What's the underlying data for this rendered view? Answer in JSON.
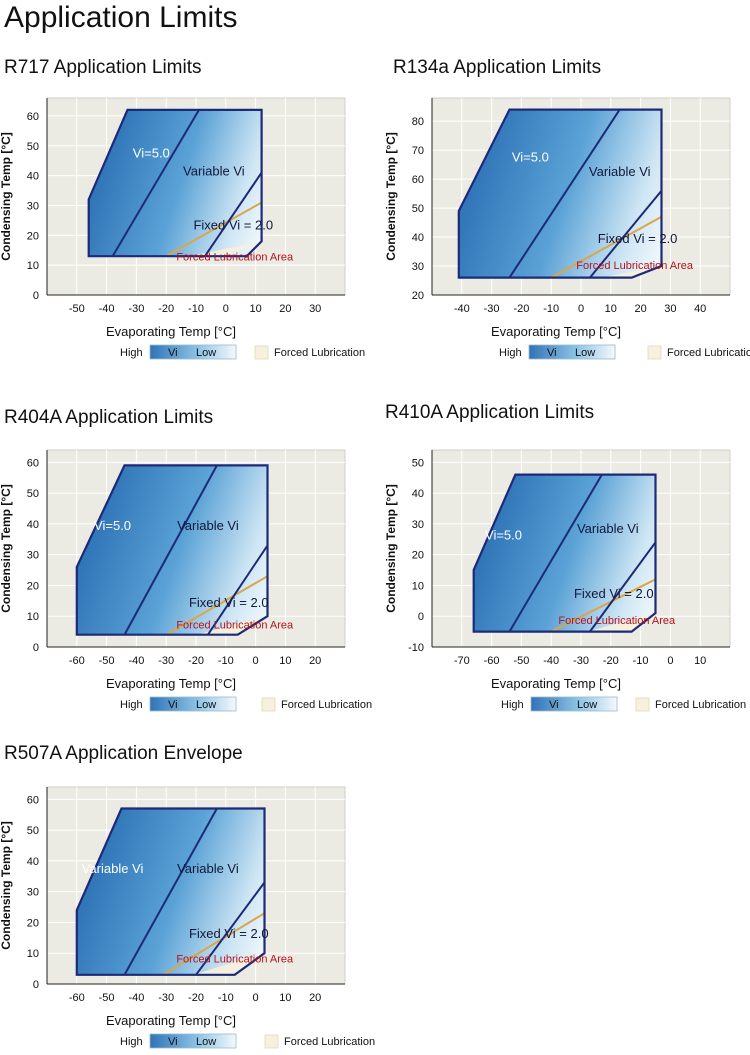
{
  "page": {
    "title": "Application Limits"
  },
  "chart_data": [
    {
      "type": "area",
      "title": "R717 Application Limits",
      "xlabel": "Evaporating Temp [°C]",
      "ylabel": "Condensing Temp [°C]",
      "xlim": [
        -60,
        40
      ],
      "ylim": [
        0,
        66
      ],
      "xticks": [
        -50,
        -40,
        -30,
        -20,
        -10,
        0,
        10,
        20,
        30
      ],
      "yticks": [
        0,
        10,
        20,
        30,
        40,
        50,
        60
      ],
      "envelope": [
        [
          -46,
          13
        ],
        [
          -46,
          32
        ],
        [
          -33,
          62
        ],
        [
          12,
          62
        ],
        [
          12,
          18
        ],
        [
          7,
          13
        ]
      ],
      "lines": [
        {
          "name": "vi-boundary-high",
          "points": [
            [
              -38,
              13
            ],
            [
              -9,
              62
            ]
          ]
        },
        {
          "name": "vi-boundary-fixed",
          "points": [
            [
              -7,
              13
            ],
            [
              12,
              41
            ]
          ]
        }
      ],
      "lubrication_line": [
        [
          -20,
          13
        ],
        [
          12,
          31
        ]
      ],
      "forced_lubrication_area": [
        [
          -12,
          13
        ],
        [
          0,
          13
        ],
        [
          12,
          18
        ]
      ],
      "region_labels": [
        {
          "text": "Vi=5.0",
          "x": -25,
          "y": 46,
          "color": "#ffffff"
        },
        {
          "text": "Variable Vi",
          "x": -4,
          "y": 40,
          "color": "#10183a"
        },
        {
          "text": "Fixed Vi = 2.0",
          "x": 2.5,
          "y": 22,
          "color": "#10183a"
        },
        {
          "text": "Forced Lubrication Area",
          "x": 3,
          "y": 11.5,
          "color": "#b5121b",
          "size": 11
        }
      ],
      "grid": true,
      "legend": {
        "high": "High",
        "vi": "Vi",
        "low": "Low",
        "forced": "Forced Lubrication"
      }
    },
    {
      "type": "area",
      "title": "R134a Application Limits",
      "xlabel": "Evaporating Temp [°C]",
      "ylabel": "Condensing Temp [°C]",
      "xlim": [
        -50,
        50
      ],
      "ylim": [
        20,
        88
      ],
      "xticks": [
        -40,
        -30,
        -20,
        -10,
        0,
        10,
        20,
        30,
        40
      ],
      "yticks": [
        20,
        30,
        40,
        50,
        60,
        70,
        80
      ],
      "envelope": [
        [
          -41,
          26
        ],
        [
          -41,
          49
        ],
        [
          -24,
          84
        ],
        [
          27,
          84
        ],
        [
          27,
          30
        ],
        [
          17,
          26
        ]
      ],
      "lines": [
        {
          "name": "vi-boundary-high",
          "points": [
            [
              -24,
              26
            ],
            [
              13,
              84
            ]
          ]
        },
        {
          "name": "vi-boundary-fixed",
          "points": [
            [
              3,
              26
            ],
            [
              27,
              56
            ]
          ]
        }
      ],
      "lubrication_line": [
        [
          -10,
          26
        ],
        [
          27,
          47
        ]
      ],
      "forced_lubrication_area": [
        [
          7,
          26
        ],
        [
          17,
          26
        ],
        [
          27,
          30
        ]
      ],
      "region_labels": [
        {
          "text": "Vi=5.0",
          "x": -17,
          "y": 66,
          "color": "#ffffff"
        },
        {
          "text": "Variable Vi",
          "x": 13,
          "y": 61,
          "color": "#10183a"
        },
        {
          "text": "Fixed Vi = 2.0",
          "x": 19,
          "y": 38,
          "color": "#10183a"
        },
        {
          "text": "Forced Lubrication Area",
          "x": 18,
          "y": 29,
          "color": "#b5121b",
          "size": 11
        }
      ],
      "grid": true,
      "legend": {
        "high": "High",
        "vi": "Vi",
        "low": "Low",
        "forced": "Forced Lubrication"
      }
    },
    {
      "type": "area",
      "title": "R404A Application Limits",
      "xlabel": "Evaporating Temp [°C]",
      "ylabel": "Condensing Temp [°C]",
      "xlim": [
        -70,
        30
      ],
      "ylim": [
        0,
        64
      ],
      "xticks": [
        -60,
        -50,
        -40,
        -30,
        -20,
        -10,
        0,
        10,
        20
      ],
      "yticks": [
        0,
        10,
        20,
        30,
        40,
        50,
        60
      ],
      "envelope": [
        [
          -60,
          4
        ],
        [
          -60,
          26
        ],
        [
          -44,
          59
        ],
        [
          4,
          59
        ],
        [
          4,
          10
        ],
        [
          -6,
          4
        ]
      ],
      "lines": [
        {
          "name": "vi-boundary-high",
          "points": [
            [
              -44,
              4
            ],
            [
              -13,
              59
            ]
          ]
        },
        {
          "name": "vi-boundary-fixed",
          "points": [
            [
              -16,
              4
            ],
            [
              4,
              33
            ]
          ]
        }
      ],
      "lubrication_line": [
        [
          -30,
          4
        ],
        [
          4,
          23
        ]
      ],
      "forced_lubrication_area": [
        [
          -20,
          4
        ],
        [
          -6,
          4
        ],
        [
          4,
          10
        ]
      ],
      "region_labels": [
        {
          "text": "Vi=5.0",
          "x": -48,
          "y": 38,
          "color": "#ffffff"
        },
        {
          "text": "Variable Vi",
          "x": -16,
          "y": 38,
          "color": "#10183a"
        },
        {
          "text": "Fixed Vi = 2.0",
          "x": -9,
          "y": 13,
          "color": "#10183a"
        },
        {
          "text": "Forced Lubrication Area",
          "x": -7,
          "y": 6,
          "color": "#b5121b",
          "size": 11
        }
      ],
      "grid": true,
      "legend": {
        "high": "High",
        "vi": "Vi",
        "low": "Low",
        "forced": "Forced Lubrication"
      }
    },
    {
      "type": "area",
      "title": "R410A Application Limits",
      "xlabel": "Evaporating Temp [°C]",
      "ylabel": "Condensing Temp [°C]",
      "xlim": [
        -80,
        20
      ],
      "ylim": [
        -10,
        54
      ],
      "xticks": [
        -70,
        -60,
        -50,
        -40,
        -30,
        -20,
        -10,
        0,
        10
      ],
      "yticks": [
        -10,
        0,
        10,
        20,
        30,
        40,
        50
      ],
      "envelope": [
        [
          -66,
          -5
        ],
        [
          -66,
          15
        ],
        [
          -52,
          46
        ],
        [
          -5,
          46
        ],
        [
          -5,
          1
        ],
        [
          -13,
          -5
        ]
      ],
      "lines": [
        {
          "name": "vi-boundary-high",
          "points": [
            [
              -54,
              -5
            ],
            [
              -23,
              46
            ]
          ]
        },
        {
          "name": "vi-boundary-fixed",
          "points": [
            [
              -27,
              -5
            ],
            [
              -5,
              24
            ]
          ]
        }
      ],
      "lubrication_line": [
        [
          -40,
          -5
        ],
        [
          -5,
          12
        ]
      ],
      "forced_lubrication_area": [
        [
          -28,
          -5
        ],
        [
          -13,
          -5
        ],
        [
          -5,
          1
        ]
      ],
      "region_labels": [
        {
          "text": "Vi=5.0",
          "x": -56,
          "y": 25,
          "color": "#ffffff"
        },
        {
          "text": "Variable Vi",
          "x": -21,
          "y": 27,
          "color": "#10183a"
        },
        {
          "text": "Fixed Vi = 2.0",
          "x": -19,
          "y": 6,
          "color": "#10183a"
        },
        {
          "text": "Forced Lubrication Area",
          "x": -18,
          "y": -2.5,
          "color": "#b5121b",
          "size": 11
        }
      ],
      "grid": true,
      "legend": {
        "high": "High",
        "vi": "Vi",
        "low": "Low",
        "forced": "Forced Lubrication"
      }
    },
    {
      "type": "area",
      "title": "R507A Application Envelope",
      "xlabel": "Evaporating Temp [°C]",
      "ylabel": "Condensing Temp [°C]",
      "xlim": [
        -70,
        30
      ],
      "ylim": [
        0,
        64
      ],
      "xticks": [
        -60,
        -50,
        -40,
        -30,
        -20,
        -10,
        0,
        10,
        20
      ],
      "yticks": [
        0,
        10,
        20,
        30,
        40,
        50,
        60
      ],
      "envelope": [
        [
          -60,
          3
        ],
        [
          -60,
          24
        ],
        [
          -45,
          57
        ],
        [
          3,
          57
        ],
        [
          3,
          10
        ],
        [
          -7,
          3
        ]
      ],
      "lines": [
        {
          "name": "vi-boundary-high",
          "points": [
            [
              -44,
              3
            ],
            [
              -13,
              57
            ]
          ]
        },
        {
          "name": "vi-boundary-fixed",
          "points": [
            [
              -20,
              3
            ],
            [
              3,
              33
            ]
          ]
        }
      ],
      "lubrication_line": [
        [
          -31,
          3
        ],
        [
          3,
          23
        ]
      ],
      "forced_lubrication_area": [
        [
          -21,
          3
        ],
        [
          -7,
          3
        ],
        [
          3,
          10
        ]
      ],
      "region_labels": [
        {
          "text": "Variable Vi",
          "x": -48,
          "y": 36,
          "color": "#ffffff"
        },
        {
          "text": "Variable Vi",
          "x": -16,
          "y": 36,
          "color": "#10183a"
        },
        {
          "text": "Fixed Vi = 2.0",
          "x": -9,
          "y": 15,
          "color": "#10183a"
        },
        {
          "text": "Forced Lubrication Area",
          "x": -7,
          "y": 7,
          "color": "#b5121b",
          "size": 11
        }
      ],
      "grid": true,
      "legend": {
        "high": "High",
        "vi": "Vi",
        "low": "Low",
        "forced": "Forced Lubrication"
      }
    }
  ]
}
